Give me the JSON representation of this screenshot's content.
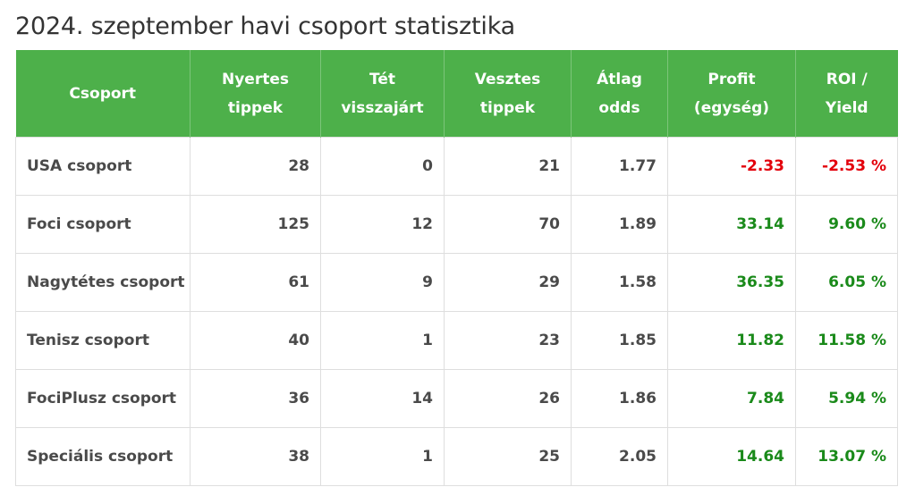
{
  "title": "2024. szeptember havi csoport statisztika",
  "colors": {
    "header_bg": "#4db04a",
    "positive": "#1a8a1a",
    "negative": "#e3000b"
  },
  "table": {
    "headers": [
      [
        "Csoport"
      ],
      [
        "Nyertes",
        "tippek"
      ],
      [
        "Tét",
        "visszajárt"
      ],
      [
        "Vesztes",
        "tippek"
      ],
      [
        "Átlag",
        "odds"
      ],
      [
        "Profit",
        "(egység)"
      ],
      [
        "ROI /",
        "Yield"
      ]
    ],
    "rows": [
      {
        "csoport": "USA csoport",
        "nyertes": "28",
        "visszajart": "0",
        "vesztes": "21",
        "atlag_odds": "1.77",
        "profit": "-2.33",
        "roi": "-2.53 %"
      },
      {
        "csoport": "Foci csoport",
        "nyertes": "125",
        "visszajart": "12",
        "vesztes": "70",
        "atlag_odds": "1.89",
        "profit": "33.14",
        "roi": "9.60 %"
      },
      {
        "csoport": "Nagytétes csoport",
        "nyertes": "61",
        "visszajart": "9",
        "vesztes": "29",
        "atlag_odds": "1.58",
        "profit": "36.35",
        "roi": "6.05 %"
      },
      {
        "csoport": "Tenisz csoport",
        "nyertes": "40",
        "visszajart": "1",
        "vesztes": "23",
        "atlag_odds": "1.85",
        "profit": "11.82",
        "roi": "11.58 %"
      },
      {
        "csoport": "FociPlusz csoport",
        "nyertes": "36",
        "visszajart": "14",
        "vesztes": "26",
        "atlag_odds": "1.86",
        "profit": "7.84",
        "roi": "5.94 %"
      },
      {
        "csoport": "Speciális csoport",
        "nyertes": "38",
        "visszajart": "1",
        "vesztes": "25",
        "atlag_odds": "2.05",
        "profit": "14.64",
        "roi": "13.07 %"
      }
    ]
  }
}
